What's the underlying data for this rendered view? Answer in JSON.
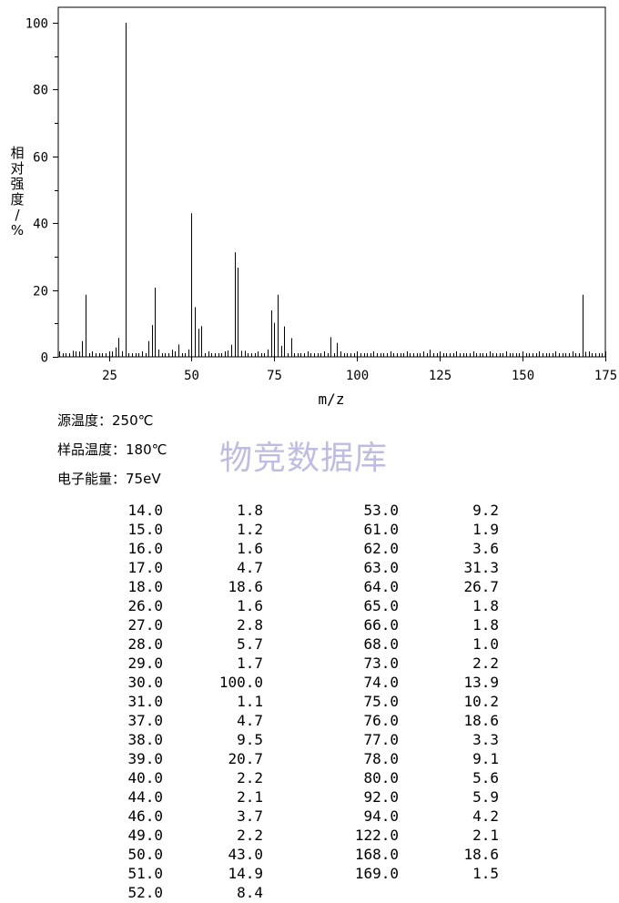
{
  "colors": {
    "ink": "#000000",
    "watermark": "#b4b1dc"
  },
  "chart_data": {
    "type": "bar",
    "xlabel": "m/z",
    "ylabel": "相对强度/%",
    "xlim": [
      10,
      175
    ],
    "ylim": [
      0,
      100
    ],
    "x_ticks": [
      25,
      50,
      75,
      100,
      125,
      150,
      175
    ],
    "y_ticks": [
      0,
      20,
      40,
      60,
      80,
      100
    ],
    "grid": false,
    "peaks": [
      [
        14.0,
        1.8
      ],
      [
        15.0,
        1.2
      ],
      [
        16.0,
        1.6
      ],
      [
        17.0,
        4.7
      ],
      [
        18.0,
        18.6
      ],
      [
        26.0,
        1.6
      ],
      [
        27.0,
        2.8
      ],
      [
        28.0,
        5.7
      ],
      [
        29.0,
        1.7
      ],
      [
        30.0,
        100.0
      ],
      [
        31.0,
        1.1
      ],
      [
        37.0,
        4.7
      ],
      [
        38.0,
        9.5
      ],
      [
        39.0,
        20.7
      ],
      [
        40.0,
        2.2
      ],
      [
        44.0,
        2.1
      ],
      [
        46.0,
        3.7
      ],
      [
        49.0,
        2.2
      ],
      [
        50.0,
        43.0
      ],
      [
        51.0,
        14.9
      ],
      [
        52.0,
        8.4
      ],
      [
        53.0,
        9.2
      ],
      [
        61.0,
        1.9
      ],
      [
        62.0,
        3.6
      ],
      [
        63.0,
        31.3
      ],
      [
        64.0,
        26.7
      ],
      [
        65.0,
        1.8
      ],
      [
        66.0,
        1.8
      ],
      [
        68.0,
        1.0
      ],
      [
        73.0,
        2.2
      ],
      [
        74.0,
        13.9
      ],
      [
        75.0,
        10.2
      ],
      [
        76.0,
        18.6
      ],
      [
        77.0,
        3.3
      ],
      [
        78.0,
        9.1
      ],
      [
        80.0,
        5.6
      ],
      [
        92.0,
        5.9
      ],
      [
        94.0,
        4.2
      ],
      [
        122.0,
        2.1
      ],
      [
        168.0,
        18.6
      ],
      [
        169.0,
        1.5
      ]
    ]
  },
  "conditions": {
    "source_temp": "源温度：250℃",
    "sample_temp": "样品温度：180℃",
    "electron_energy": "电子能量：75eV"
  },
  "watermark": "物竞数据库",
  "peak_table": [
    [
      "14.0",
      "1.8",
      "53.0",
      "9.2"
    ],
    [
      "15.0",
      "1.2",
      "61.0",
      "1.9"
    ],
    [
      "16.0",
      "1.6",
      "62.0",
      "3.6"
    ],
    [
      "17.0",
      "4.7",
      "63.0",
      "31.3"
    ],
    [
      "18.0",
      "18.6",
      "64.0",
      "26.7"
    ],
    [
      "26.0",
      "1.6",
      "65.0",
      "1.8"
    ],
    [
      "27.0",
      "2.8",
      "66.0",
      "1.8"
    ],
    [
      "28.0",
      "5.7",
      "68.0",
      "1.0"
    ],
    [
      "29.0",
      "1.7",
      "73.0",
      "2.2"
    ],
    [
      "30.0",
      "100.0",
      "74.0",
      "13.9"
    ],
    [
      "31.0",
      "1.1",
      "75.0",
      "10.2"
    ],
    [
      "37.0",
      "4.7",
      "76.0",
      "18.6"
    ],
    [
      "38.0",
      "9.5",
      "77.0",
      "3.3"
    ],
    [
      "39.0",
      "20.7",
      "78.0",
      "9.1"
    ],
    [
      "40.0",
      "2.2",
      "80.0",
      "5.6"
    ],
    [
      "44.0",
      "2.1",
      "92.0",
      "5.9"
    ],
    [
      "46.0",
      "3.7",
      "94.0",
      "4.2"
    ],
    [
      "49.0",
      "2.2",
      "122.0",
      "2.1"
    ],
    [
      "50.0",
      "43.0",
      "168.0",
      "18.6"
    ],
    [
      "51.0",
      "14.9",
      "169.0",
      "1.5"
    ],
    [
      "52.0",
      "8.4",
      "",
      ""
    ]
  ]
}
